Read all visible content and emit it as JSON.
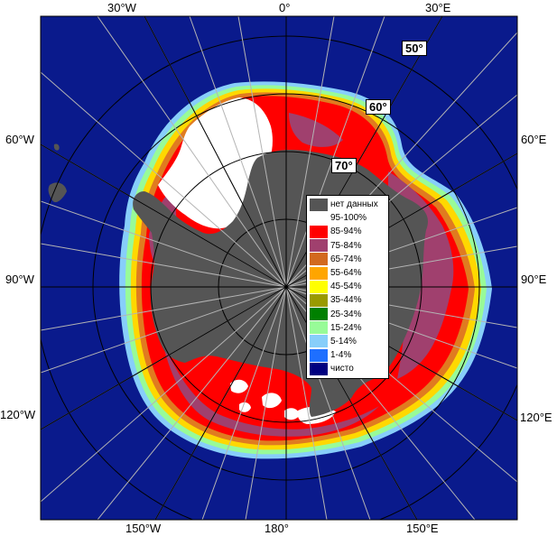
{
  "lon_labels": {
    "w30": "30°W",
    "zero": "0°",
    "e30": "30°E",
    "w60": "60°W",
    "e60": "60°E",
    "w90": "90°W",
    "e90": "90°E",
    "w120": "120°W",
    "e120": "120°E",
    "w150": "150°W",
    "d180": "180°",
    "e150": "150°E"
  },
  "lat_labels": {
    "l50": "50°",
    "l60": "60°",
    "l70": "70°"
  },
  "legend": [
    {
      "label": "нет данных",
      "color": "#555555"
    },
    {
      "label": "95-100%",
      "color": "#ffffff"
    },
    {
      "label": "85-94%",
      "color": "#ff0000"
    },
    {
      "label": "75-84%",
      "color": "#a0406e"
    },
    {
      "label": "65-74%",
      "color": "#d2691e"
    },
    {
      "label": "55-64%",
      "color": "#ffa500"
    },
    {
      "label": "45-54%",
      "color": "#ffff00"
    },
    {
      "label": "35-44%",
      "color": "#9a9a00"
    },
    {
      "label": "25-34%",
      "color": "#008000"
    },
    {
      "label": "15-24%",
      "color": "#98fb98"
    },
    {
      "label": "5-14%",
      "color": "#87cefa"
    },
    {
      "label": "1-4%",
      "color": "#1e6fff"
    },
    {
      "label": "чисто",
      "color": "#000080"
    }
  ],
  "colors": {
    "ocean": "#0a1a8c",
    "land": "#555555",
    "grid": "#b4b4b4",
    "circle": "#000000"
  }
}
